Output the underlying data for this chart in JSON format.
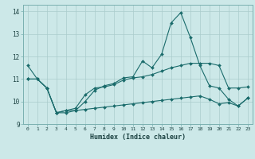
{
  "xlabel": "Humidex (Indice chaleur)",
  "background_color": "#cce8e8",
  "grid_color": "#aacccc",
  "line_color": "#1a6b6b",
  "xlim": [
    -0.5,
    23.5
  ],
  "ylim": [
    9.0,
    14.3
  ],
  "yticks": [
    9,
    10,
    11,
    12,
    13,
    14
  ],
  "xticks": [
    0,
    1,
    2,
    3,
    4,
    5,
    6,
    7,
    8,
    9,
    10,
    11,
    12,
    13,
    14,
    15,
    16,
    17,
    18,
    19,
    20,
    21,
    22,
    23
  ],
  "series1_x": [
    0,
    1,
    2,
    3,
    4,
    5,
    6,
    7,
    8,
    9,
    10,
    11,
    12,
    13,
    14,
    15,
    16,
    17,
    18,
    19,
    20,
    21,
    22,
    23
  ],
  "series1_y": [
    11.6,
    11.0,
    10.6,
    9.5,
    9.6,
    9.6,
    10.0,
    10.5,
    10.7,
    10.8,
    11.05,
    11.1,
    11.8,
    11.5,
    12.1,
    13.5,
    13.95,
    12.85,
    11.6,
    10.7,
    10.6,
    10.1,
    9.8,
    10.15
  ],
  "series2_x": [
    0,
    1,
    2,
    3,
    4,
    5,
    6,
    7,
    8,
    9,
    10,
    11,
    12,
    13,
    14,
    15,
    16,
    17,
    18,
    19,
    20,
    21,
    22,
    23
  ],
  "series2_y": [
    11.0,
    11.0,
    10.6,
    9.5,
    9.6,
    9.7,
    10.3,
    10.6,
    10.65,
    10.75,
    10.95,
    11.05,
    11.1,
    11.2,
    11.35,
    11.5,
    11.6,
    11.7,
    11.7,
    11.7,
    11.6,
    10.6,
    10.6,
    10.65
  ],
  "series3_x": [
    0,
    1,
    2,
    3,
    4,
    5,
    6,
    7,
    8,
    9,
    10,
    11,
    12,
    13,
    14,
    15,
    16,
    17,
    18,
    19,
    20,
    21,
    22,
    23
  ],
  "series3_y": [
    11.0,
    11.0,
    10.6,
    9.5,
    9.5,
    9.6,
    9.65,
    9.7,
    9.75,
    9.8,
    9.85,
    9.9,
    9.95,
    10.0,
    10.05,
    10.1,
    10.15,
    10.2,
    10.25,
    10.1,
    9.9,
    9.95,
    9.8,
    10.15
  ]
}
